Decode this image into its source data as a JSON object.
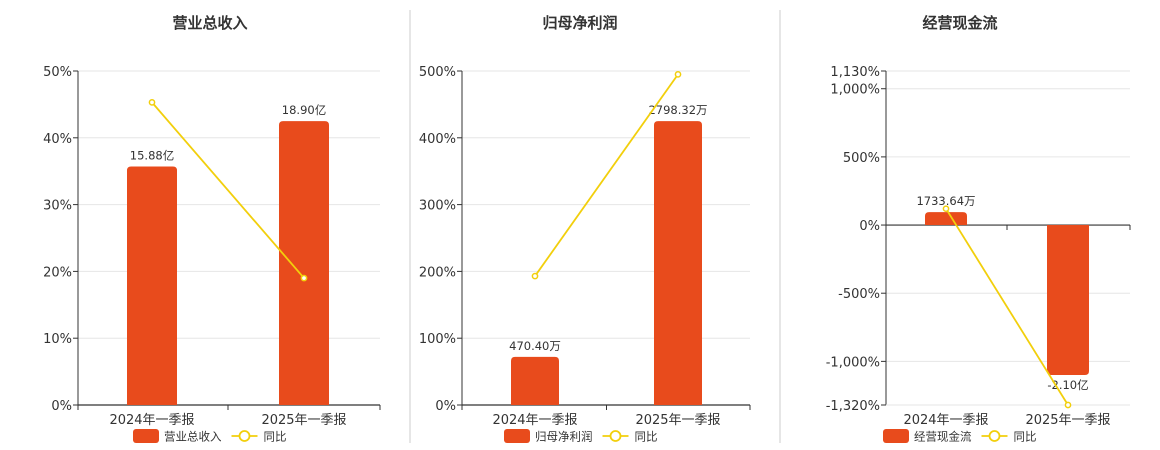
{
  "colors": {
    "bar": "#E84B1C",
    "line": "#F2CF0C",
    "grid": "#E6E6E6",
    "axis": "#333333",
    "divider": "#CCCCCC"
  },
  "chart_data": [
    {
      "type": "bar",
      "title": "营业总收入",
      "categories": [
        "2024年一季报",
        "2025年一季报"
      ],
      "series": [
        {
          "name": "营业总收入",
          "type": "bar",
          "values": [
            35.7,
            42.5
          ],
          "labels": [
            "15.88亿",
            "18.90亿"
          ]
        },
        {
          "name": "同比",
          "type": "line",
          "values": [
            45.3,
            19.0
          ]
        }
      ],
      "ylim": [
        0,
        50
      ],
      "yticks": [
        0,
        10,
        20,
        30,
        40,
        50
      ],
      "ytick_labels": [
        "0%",
        "10%",
        "20%",
        "30%",
        "40%",
        "50%"
      ],
      "grid": true,
      "legend": "bottom"
    },
    {
      "type": "bar",
      "title": "归母净利润",
      "categories": [
        "2024年一季报",
        "2025年一季报"
      ],
      "series": [
        {
          "name": "归母净利润",
          "type": "bar",
          "values": [
            72,
            425
          ],
          "labels": [
            "470.40万",
            "2798.32万"
          ]
        },
        {
          "name": "同比",
          "type": "line",
          "values": [
            193,
            495
          ]
        }
      ],
      "ylim": [
        0,
        500
      ],
      "yticks": [
        0,
        100,
        200,
        300,
        400,
        500
      ],
      "ytick_labels": [
        "0%",
        "100%",
        "200%",
        "300%",
        "400%",
        "500%"
      ],
      "grid": true,
      "legend": "bottom"
    },
    {
      "type": "bar",
      "title": "经营现金流",
      "categories": [
        "2024年一季报",
        "2025年一季报"
      ],
      "series": [
        {
          "name": "经营现金流",
          "type": "bar",
          "values": [
            95,
            -1100
          ],
          "labels": [
            "1733.64万",
            "-2.10亿"
          ]
        },
        {
          "name": "同比",
          "type": "line",
          "values": [
            120,
            -1320
          ]
        }
      ],
      "ylim": [
        -1320,
        1130
      ],
      "yticks": [
        -1320,
        -1000,
        -500,
        0,
        500,
        1000,
        1130
      ],
      "ytick_labels": [
        "-1,320%",
        "-1,000%",
        "-500%",
        "0%",
        "500%",
        "1,000%",
        "1,130%"
      ],
      "grid": true,
      "legend": "bottom"
    }
  ]
}
